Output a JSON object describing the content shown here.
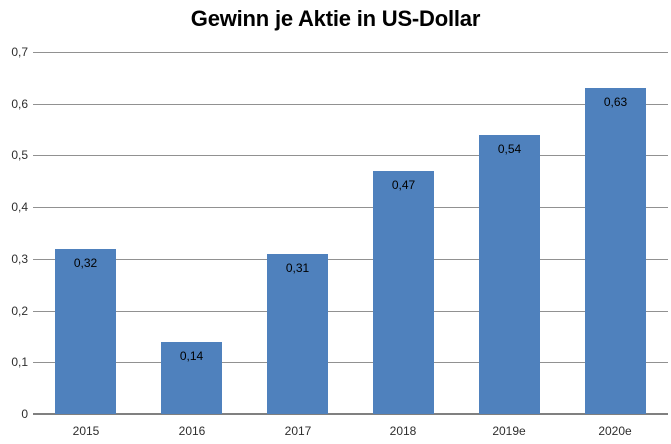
{
  "chart_data": {
    "type": "bar",
    "title": "Gewinn je Aktie in US-Dollar",
    "categories": [
      "2015",
      "2016",
      "2017",
      "2018",
      "2019e",
      "2020e"
    ],
    "values": [
      0.32,
      0.14,
      0.31,
      0.47,
      0.54,
      0.63
    ],
    "value_labels": [
      "0,32",
      "0,14",
      "0,31",
      "0,47",
      "0,54",
      "0,63"
    ],
    "xlabel": "",
    "ylabel": "",
    "ylim": [
      0,
      0.7
    ],
    "y_tick_step": 0.1,
    "y_tick_labels": [
      "0",
      "0,1",
      "0,2",
      "0,3",
      "0,4",
      "0,5",
      "0,6",
      "0,7"
    ],
    "grid": true,
    "legend": "none",
    "bar_color": "#4f81bd",
    "grid_color": "#919191",
    "axis_color": "#808080",
    "value_label_color": "#000000",
    "tick_label_color": "#2e2e2e"
  }
}
